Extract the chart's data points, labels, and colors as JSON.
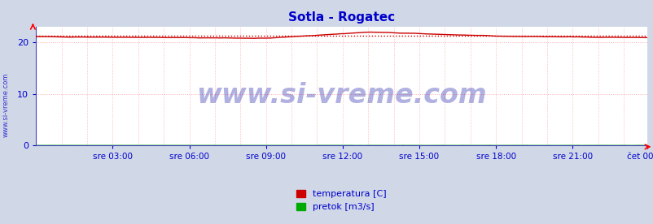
{
  "title": "Sotla - Rogatec",
  "title_color": "#0000cc",
  "title_fontsize": 11,
  "bg_color": "#d0d8e8",
  "plot_bg_color": "#ffffff",
  "grid_color": "#ffaaaa",
  "grid_linestyle": ":",
  "ylim": [
    0,
    23
  ],
  "yticks": [
    0,
    10,
    20
  ],
  "ylabel_color": "#0000cc",
  "xlabel_color": "#0000cc",
  "xtick_labels": [
    "sre 03:00",
    "sre 06:00",
    "sre 09:00",
    "sre 12:00",
    "sre 15:00",
    "sre 18:00",
    "sre 21:00",
    "čet 00:00"
  ],
  "n_points": 288,
  "temp_color": "#cc0000",
  "pretok_color": "#00aa00",
  "avg_color": "#cc0000",
  "avg_linestyle": ":",
  "avg_value": 21.35,
  "watermark": "www.si-vreme.com",
  "watermark_color": "#2222aa",
  "watermark_fontsize": 24,
  "watermark_alpha": 0.35,
  "legend_labels": [
    "temperatura [C]",
    "pretok [m3/s]"
  ],
  "legend_colors": [
    "#cc0000",
    "#00aa00"
  ],
  "side_label": "www.si-vreme.com",
  "side_label_color": "#3333cc",
  "side_label_fontsize": 6
}
